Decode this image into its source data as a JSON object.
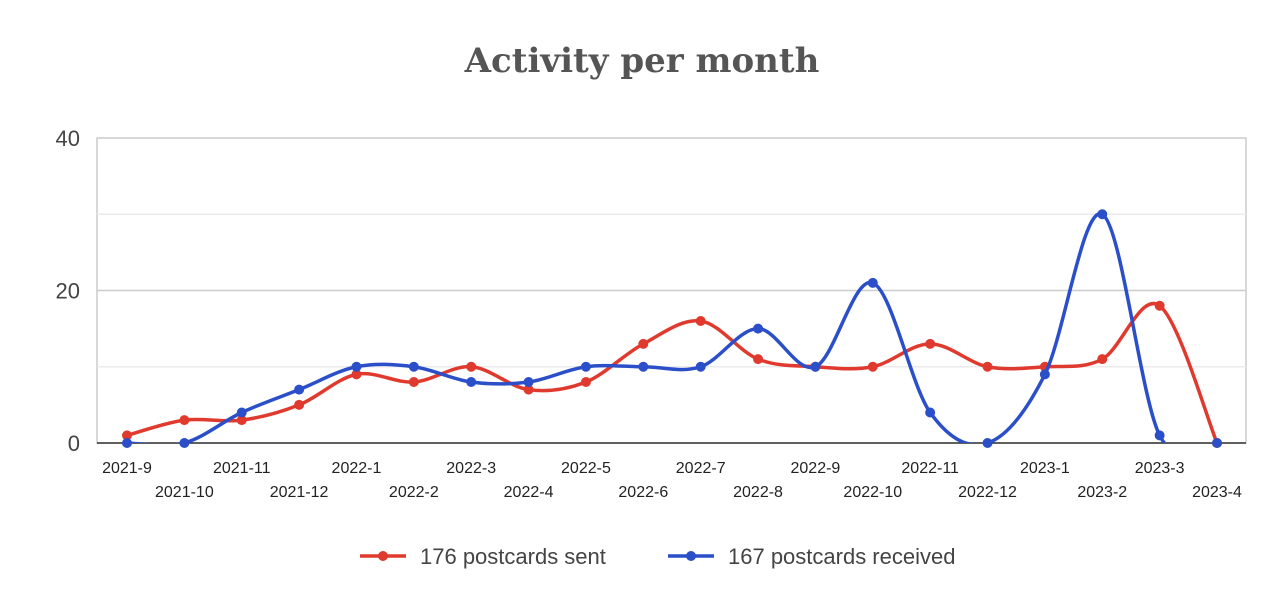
{
  "chart_data": {
    "type": "line",
    "title": "Activity per month",
    "xlabel": "",
    "ylabel": "",
    "ylim": [
      0,
      40
    ],
    "yticks": [
      0,
      20,
      40
    ],
    "grid": true,
    "smooth": true,
    "legend_position": "bottom",
    "categories": [
      "2021-9",
      "2021-10",
      "2021-11",
      "2021-12",
      "2022-1",
      "2022-2",
      "2022-3",
      "2022-4",
      "2022-5",
      "2022-6",
      "2022-7",
      "2022-8",
      "2022-9",
      "2022-10",
      "2022-11",
      "2022-12",
      "2023-1",
      "2023-2",
      "2023-3",
      "2023-4"
    ],
    "series": [
      {
        "name": "176 postcards sent",
        "color": "#e03a2f",
        "values": [
          1,
          3,
          3,
          5,
          9,
          8,
          10,
          7,
          8,
          13,
          16,
          11,
          10,
          10,
          13,
          10,
          10,
          11,
          18,
          0
        ]
      },
      {
        "name": "167 postcards received",
        "color": "#2a4fc8",
        "values": [
          0,
          0,
          4,
          7,
          10,
          10,
          8,
          8,
          10,
          10,
          10,
          15,
          10,
          21,
          4,
          0,
          9,
          30,
          1,
          0
        ]
      }
    ]
  }
}
